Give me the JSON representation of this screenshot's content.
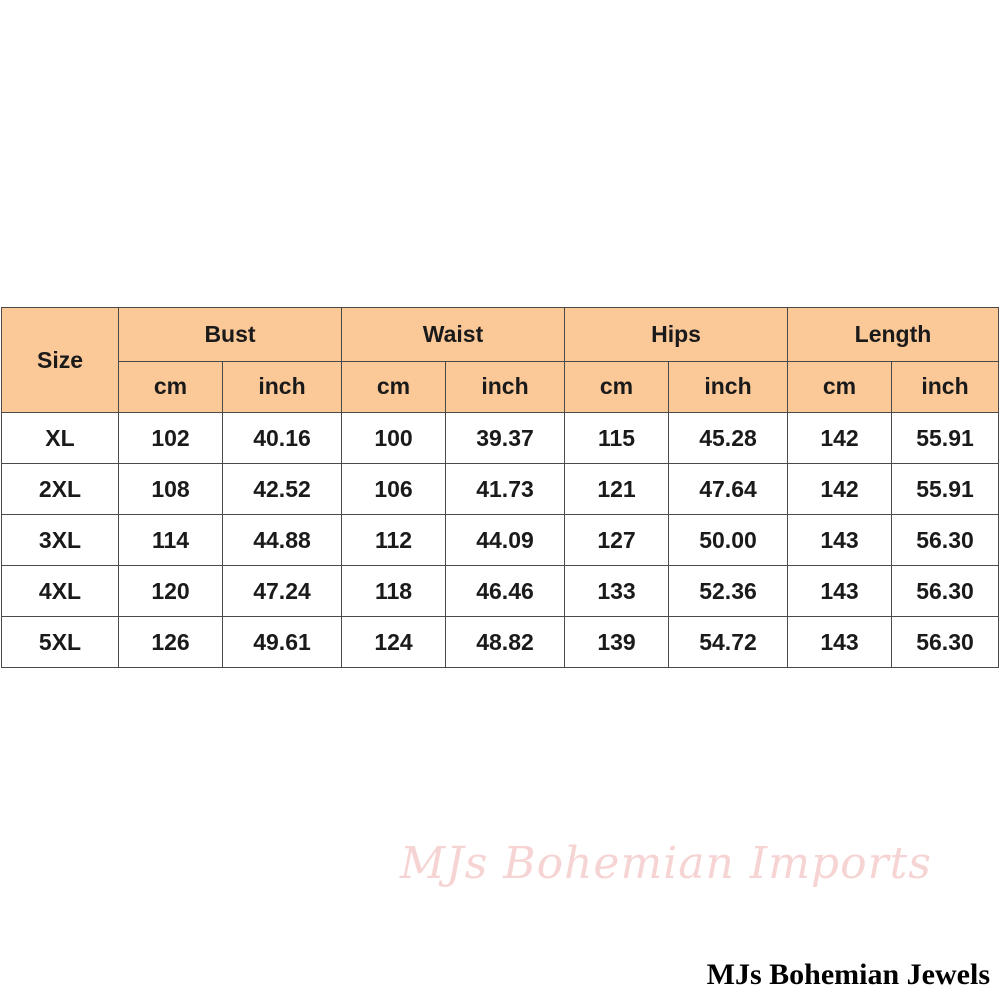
{
  "table": {
    "size_label": "Size",
    "groups": [
      "Bust",
      "Waist",
      "Hips",
      "Length"
    ],
    "unit_cm": "cm",
    "unit_inch": "inch",
    "rows": [
      [
        "XL",
        "102",
        "40.16",
        "100",
        "39.37",
        "115",
        "45.28",
        "142",
        "55.91"
      ],
      [
        "2XL",
        "108",
        "42.52",
        "106",
        "41.73",
        "121",
        "47.64",
        "142",
        "55.91"
      ],
      [
        "3XL",
        "114",
        "44.88",
        "112",
        "44.09",
        "127",
        "50.00",
        "143",
        "56.30"
      ],
      [
        "4XL",
        "120",
        "47.24",
        "118",
        "46.46",
        "133",
        "52.36",
        "143",
        "56.30"
      ],
      [
        "5XL",
        "126",
        "49.61",
        "124",
        "48.82",
        "139",
        "54.72",
        "143",
        "56.30"
      ]
    ]
  },
  "header_color": "#fbc898",
  "watermark": "MJs Bohemian Imports",
  "brand": "MJs Bohemian Jewels"
}
